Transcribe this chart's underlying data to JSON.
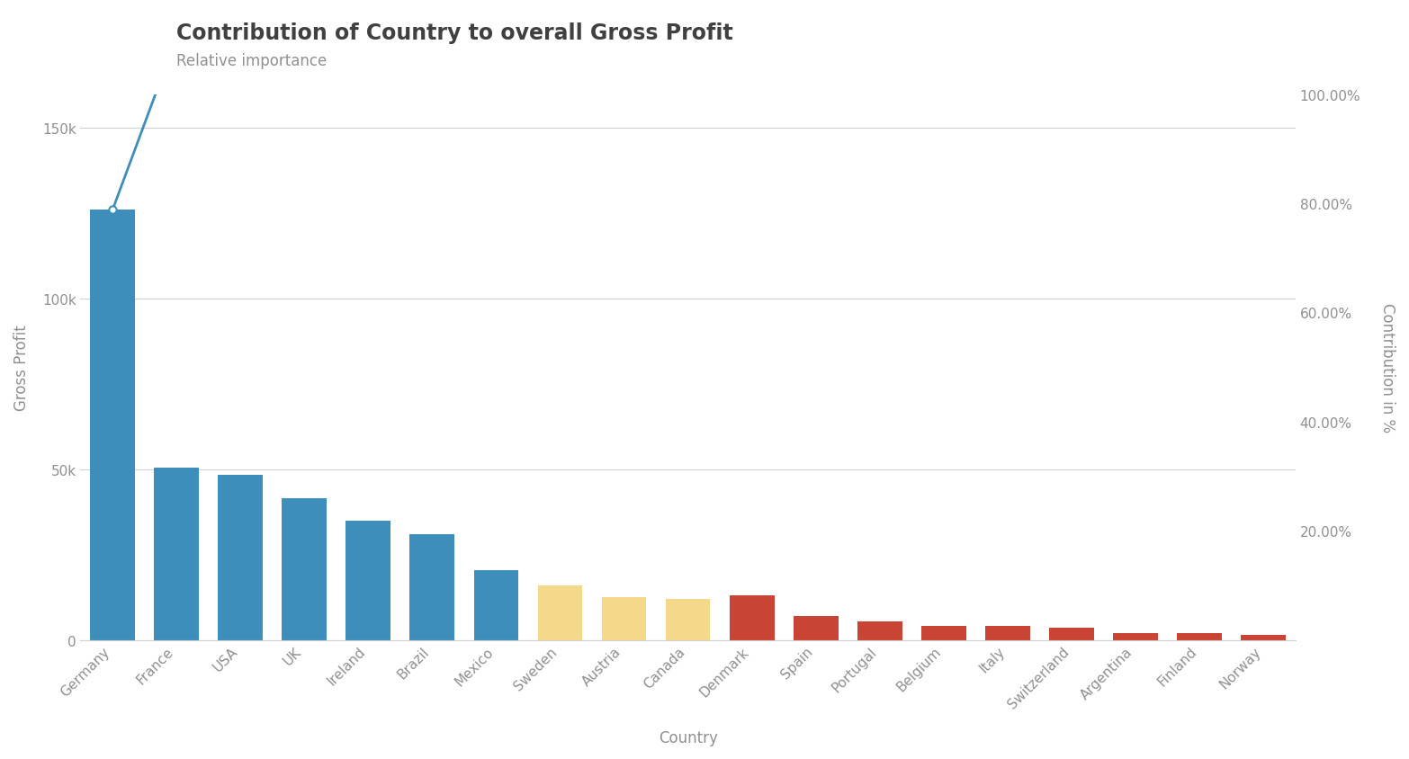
{
  "title": "Contribution of Country to overall Gross Profit",
  "subtitle": "Relative importance",
  "xlabel": "Country",
  "ylabel_left": "Gross Profit",
  "ylabel_right": "Contribution in %",
  "categories": [
    "Germany",
    "France",
    "USA",
    "UK",
    "Ireland",
    "Brazil",
    "Mexico",
    "Sweden",
    "Austria",
    "Canada",
    "Denmark",
    "Spain",
    "Portugal",
    "Belgium",
    "Italy",
    "Switzerland",
    "Argentina",
    "Finland",
    "Norway"
  ],
  "values": [
    126000,
    50500,
    48500,
    41500,
    35000,
    31000,
    20500,
    16000,
    12500,
    12000,
    13000,
    7000,
    5500,
    4000,
    4200,
    3500,
    2000,
    2000,
    1500
  ],
  "bar_colors": [
    "#3d8eba",
    "#3d8eba",
    "#3d8eba",
    "#3d8eba",
    "#3d8eba",
    "#3d8eba",
    "#3d8eba",
    "#f5d98b",
    "#f5d98b",
    "#f5d98b",
    "#c94434",
    "#c94434",
    "#c94434",
    "#c94434",
    "#c94434",
    "#c94434",
    "#c94434",
    "#c94434",
    "#c94434"
  ],
  "line_colors": [
    "#3d8eba",
    "#3d8eba",
    "#3d8eba",
    "#3d8eba",
    "#3d8eba",
    "#3d8eba",
    "#3d8eba",
    "#f0d080",
    "#f0d080",
    "#f0d080",
    "#c94434",
    "#c94434",
    "#c94434",
    "#c94434",
    "#c94434",
    "#c94434",
    "#c94434",
    "#c94434",
    "#c94434"
  ],
  "ylim_left": [
    0,
    160000
  ],
  "yticks_left": [
    0,
    50000,
    100000,
    150000
  ],
  "ytick_labels_left": [
    "0",
    "50k",
    "100k",
    "150k"
  ],
  "right_pct_ticks": [
    20.0,
    40.0,
    60.0,
    80.0,
    100.0
  ],
  "background_color": "#ffffff",
  "grid_color": "#d0d0d0",
  "title_color": "#404040",
  "subtitle_color": "#909090",
  "tick_color": "#909090",
  "axis_label_color": "#909090",
  "title_fontsize": 17,
  "subtitle_fontsize": 12,
  "tick_fontsize": 11,
  "label_fontsize": 12
}
